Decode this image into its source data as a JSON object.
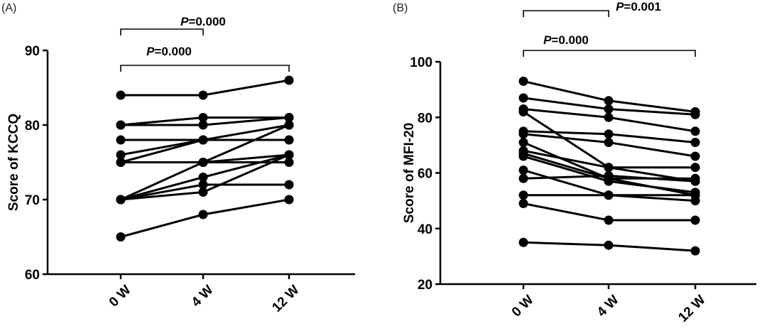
{
  "colors": {
    "ink": "#000000",
    "background": "#ffffff"
  },
  "chart_data": [
    {
      "type": "line",
      "panel_label": "(A)",
      "categories": [
        "0 W",
        "4 W",
        "12 W"
      ],
      "ylabel": "Score of KCCQ",
      "ylim": [
        60,
        90
      ],
      "yticks": [
        60,
        70,
        80,
        90
      ],
      "series": [
        {
          "values": [
            84,
            84,
            86
          ]
        },
        {
          "values": [
            80,
            81,
            81
          ]
        },
        {
          "values": [
            80,
            80,
            81
          ]
        },
        {
          "values": [
            78,
            78,
            78
          ]
        },
        {
          "values": [
            76,
            78,
            80
          ]
        },
        {
          "values": [
            75,
            78,
            78
          ]
        },
        {
          "values": [
            75,
            75,
            75
          ]
        },
        {
          "values": [
            75,
            75,
            76
          ]
        },
        {
          "values": [
            70,
            75,
            80
          ]
        },
        {
          "values": [
            70,
            73,
            76
          ]
        },
        {
          "values": [
            70,
            72,
            72
          ]
        },
        {
          "values": [
            70,
            71,
            76
          ]
        },
        {
          "values": [
            65,
            68,
            70
          ]
        }
      ],
      "annotations": [
        {
          "from": 0,
          "to": 2,
          "level": 2,
          "p_label": "P",
          "p_value": "=0.000"
        },
        {
          "from": 0,
          "to": 1,
          "level": 1,
          "p_label": "P",
          "p_value": "=0.000"
        }
      ],
      "grid": false
    },
    {
      "type": "line",
      "panel_label": "(B)",
      "categories": [
        "0 W",
        "4 W",
        "12 W"
      ],
      "ylabel": "Score of MFI-20",
      "ylim": [
        20,
        100
      ],
      "yticks": [
        20,
        40,
        60,
        80,
        100
      ],
      "series": [
        {
          "values": [
            93,
            86,
            82
          ]
        },
        {
          "values": [
            87,
            83,
            81
          ]
        },
        {
          "values": [
            83,
            80,
            75
          ]
        },
        {
          "values": [
            82,
            62,
            57
          ]
        },
        {
          "values": [
            75,
            74,
            71
          ]
        },
        {
          "values": [
            74,
            71,
            66
          ]
        },
        {
          "values": [
            71,
            58,
            52
          ]
        },
        {
          "values": [
            68,
            62,
            62
          ]
        },
        {
          "values": [
            67,
            58,
            58
          ]
        },
        {
          "values": [
            66,
            57,
            53
          ]
        },
        {
          "values": [
            61,
            52,
            52
          ]
        },
        {
          "values": [
            58,
            59,
            57
          ]
        },
        {
          "values": [
            52,
            52,
            50
          ]
        },
        {
          "values": [
            49,
            43,
            43
          ]
        },
        {
          "values": [
            35,
            34,
            32
          ]
        }
      ],
      "annotations": [
        {
          "from": 0,
          "to": 2,
          "level": 2,
          "p_label": "P",
          "p_value": "=0.000"
        },
        {
          "from": 0,
          "to": 1,
          "level": 1,
          "p_label": "P",
          "p_value": "=0.001"
        }
      ],
      "grid": false
    }
  ]
}
